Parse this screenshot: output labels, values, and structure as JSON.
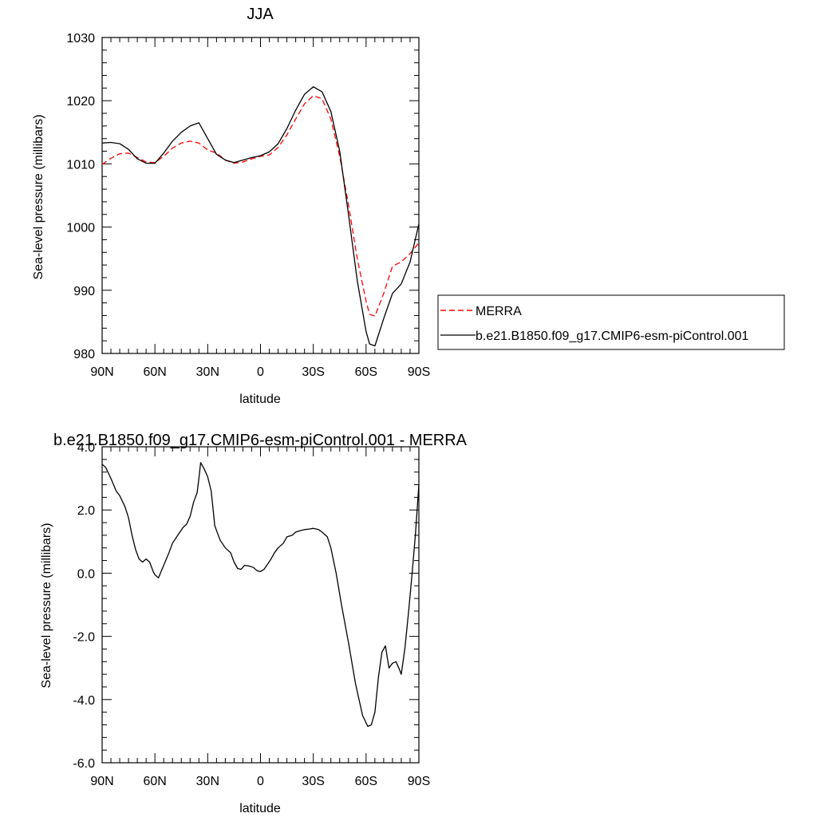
{
  "chart_data": [
    {
      "type": "line",
      "title": "JJA",
      "xlabel": "latitude",
      "ylabel": "Sea-level pressure (millibars)",
      "xlim": [
        90,
        -90
      ],
      "ylim": [
        980,
        1030
      ],
      "xticks": [
        {
          "value": 90,
          "label": "90N"
        },
        {
          "value": 60,
          "label": "60N"
        },
        {
          "value": 30,
          "label": "30N"
        },
        {
          "value": 0,
          "label": "0"
        },
        {
          "value": -30,
          "label": "30S"
        },
        {
          "value": -60,
          "label": "60S"
        },
        {
          "value": -90,
          "label": "90S"
        }
      ],
      "yticks": [
        {
          "value": 980,
          "label": "980"
        },
        {
          "value": 990,
          "label": "990"
        },
        {
          "value": 1000,
          "label": "1000"
        },
        {
          "value": 1010,
          "label": "1010"
        },
        {
          "value": 1020,
          "label": "1020"
        },
        {
          "value": 1030,
          "label": "1030"
        }
      ],
      "legend_position": "right",
      "series": [
        {
          "name": "MERRA",
          "color": "#ff0000",
          "dash": true,
          "x": [
            90,
            85,
            80,
            75,
            70,
            65,
            60,
            55,
            50,
            45,
            40,
            35,
            30,
            25,
            20,
            15,
            10,
            5,
            0,
            -5,
            -10,
            -15,
            -20,
            -25,
            -30,
            -35,
            -40,
            -45,
            -50,
            -55,
            -60,
            -62,
            -65,
            -70,
            -75,
            -80,
            -85,
            -90
          ],
          "y": [
            1009.9,
            1010.9,
            1011.6,
            1011.7,
            1011.0,
            1010.3,
            1010.2,
            1011.2,
            1012.5,
            1013.3,
            1013.6,
            1013.3,
            1012.2,
            1011.7,
            1010.6,
            1010.1,
            1010.3,
            1010.8,
            1011.2,
            1011.4,
            1012.6,
            1014.6,
            1017.1,
            1019.5,
            1020.8,
            1020.3,
            1017.1,
            1011.2,
            1003.5,
            995.0,
            988.3,
            986.2,
            985.9,
            989.5,
            993.8,
            994.5,
            995.8,
            997.5
          ]
        },
        {
          "name": "b.e21.B1850.f09_g17.CMIP6-esm-piControl.001",
          "color": "#000000",
          "dash": false,
          "x": [
            90,
            85,
            80,
            75,
            70,
            65,
            60,
            55,
            50,
            45,
            40,
            35,
            30,
            25,
            20,
            15,
            10,
            5,
            0,
            -5,
            -10,
            -15,
            -20,
            -25,
            -30,
            -35,
            -40,
            -45,
            -50,
            -55,
            -60,
            -62,
            -65,
            -70,
            -75,
            -80,
            -85,
            -90
          ],
          "y": [
            1013.3,
            1013.4,
            1013.2,
            1012.3,
            1010.8,
            1010.1,
            1010.1,
            1011.7,
            1013.6,
            1015.0,
            1016.0,
            1016.5,
            1014.0,
            1011.5,
            1010.6,
            1010.2,
            1010.6,
            1011.0,
            1011.3,
            1011.9,
            1013.2,
            1015.6,
            1018.5,
            1021.0,
            1022.2,
            1021.4,
            1018.3,
            1012.0,
            1002.0,
            991.5,
            983.5,
            981.5,
            981.2,
            985.5,
            989.5,
            991.0,
            994.5,
            1000.5
          ]
        }
      ]
    },
    {
      "type": "line",
      "title": "b.e21.B1850.f09_g17.CMIP6-esm-piControl.001 - MERRA",
      "xlabel": "latitude",
      "ylabel": "Sea-level pressure (millibars)",
      "xlim": [
        90,
        -90
      ],
      "ylim": [
        -6,
        4
      ],
      "xticks": [
        {
          "value": 90,
          "label": "90N"
        },
        {
          "value": 60,
          "label": "60N"
        },
        {
          "value": 30,
          "label": "30N"
        },
        {
          "value": 0,
          "label": "0"
        },
        {
          "value": -30,
          "label": "30S"
        },
        {
          "value": -60,
          "label": "60S"
        },
        {
          "value": -90,
          "label": "90S"
        }
      ],
      "yticks": [
        {
          "value": -6,
          "label": "-6.0"
        },
        {
          "value": -4,
          "label": "-4.0"
        },
        {
          "value": -2,
          "label": "-2.0"
        },
        {
          "value": 0,
          "label": "0.0"
        },
        {
          "value": 2,
          "label": "2.0"
        },
        {
          "value": 4,
          "label": "4.0"
        }
      ],
      "series": [
        {
          "color": "#000000",
          "dash": false,
          "x": [
            90,
            88,
            85,
            82,
            80,
            77,
            75,
            73,
            71,
            69,
            67,
            65,
            63,
            61,
            60,
            58,
            55,
            52,
            50,
            47,
            44,
            42,
            40,
            38,
            36,
            35,
            34,
            32,
            30,
            28,
            26,
            23,
            20,
            17,
            15,
            13,
            11,
            9,
            6,
            4,
            2,
            0,
            -2,
            -4,
            -6,
            -8,
            -10,
            -13,
            -15,
            -18,
            -20,
            -23,
            -25,
            -28,
            -30,
            -33,
            -35,
            -38,
            -40,
            -43,
            -46,
            -50,
            -54,
            -58,
            -61,
            -63,
            -65,
            -67,
            -69,
            -71,
            -73,
            -75,
            -77,
            -79,
            -80,
            -82,
            -84,
            -86,
            -88,
            -90
          ],
          "y": [
            3.45,
            3.35,
            3.0,
            2.6,
            2.45,
            2.1,
            1.75,
            1.2,
            0.75,
            0.45,
            0.35,
            0.45,
            0.35,
            0.05,
            -0.05,
            -0.15,
            0.25,
            0.65,
            0.95,
            1.2,
            1.45,
            1.55,
            1.8,
            2.25,
            2.55,
            3.0,
            3.5,
            3.3,
            3.05,
            2.6,
            1.5,
            1.05,
            0.8,
            0.65,
            0.35,
            0.15,
            0.12,
            0.25,
            0.22,
            0.18,
            0.08,
            0.05,
            0.12,
            0.28,
            0.45,
            0.65,
            0.8,
            0.95,
            1.15,
            1.2,
            1.3,
            1.35,
            1.38,
            1.4,
            1.42,
            1.38,
            1.3,
            1.15,
            0.8,
            0.0,
            -1.0,
            -2.2,
            -3.5,
            -4.5,
            -4.85,
            -4.8,
            -4.4,
            -3.3,
            -2.5,
            -2.3,
            -3.0,
            -2.85,
            -2.8,
            -3.05,
            -3.2,
            -2.4,
            -1.3,
            -0.1,
            1.2,
            2.8
          ]
        }
      ]
    }
  ]
}
